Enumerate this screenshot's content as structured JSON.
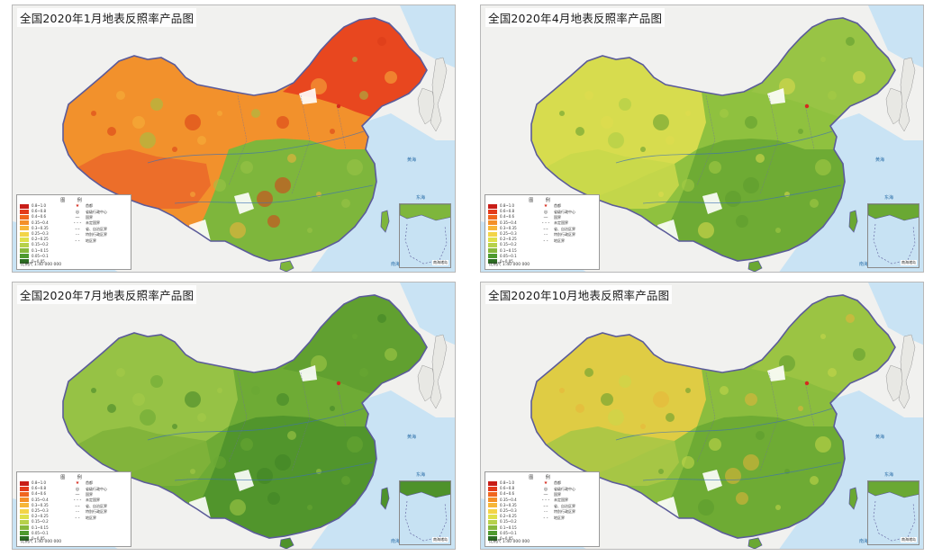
{
  "panels": [
    {
      "title": "全国2020年1月地表反照率产品图",
      "season": "winter"
    },
    {
      "title": "全国2020年4月地表反照率产品图",
      "season": "spring"
    },
    {
      "title": "全国2020年7月地表反照率产品图",
      "season": "summer"
    },
    {
      "title": "全国2020年10月地表反照率产品图",
      "season": "autumn"
    }
  ],
  "legend": {
    "title": "图 例",
    "classes": [
      {
        "label": "0.8~1.0",
        "color": "#c81d17"
      },
      {
        "label": "0.6~0.8",
        "color": "#e33b1c"
      },
      {
        "label": "0.4~0.6",
        "color": "#f0661e"
      },
      {
        "label": "0.35~0.4",
        "color": "#f49028"
      },
      {
        "label": "0.3~0.35",
        "color": "#f7b638"
      },
      {
        "label": "0.25~0.3",
        "color": "#f3d447"
      },
      {
        "label": "0.2~0.25",
        "color": "#dfe04b"
      },
      {
        "label": "0.15~0.2",
        "color": "#b6d14a"
      },
      {
        "label": "0.1~0.15",
        "color": "#86b83c"
      },
      {
        "label": "0.05~0.1",
        "color": "#4f9a2f"
      },
      {
        "label": "0~0.05",
        "color": "#2c6e22"
      }
    ],
    "symbols": [
      {
        "label": "首都",
        "icon": "capital-star"
      },
      {
        "label": "省级行政中心",
        "icon": "provincial-capital"
      },
      {
        "label": "国界",
        "icon": "national-boundary"
      },
      {
        "label": "未定国界",
        "icon": "undetermined-boundary"
      },
      {
        "label": "省、自治区界",
        "icon": "provincial-boundary"
      },
      {
        "label": "特别行政区界",
        "icon": "sar-boundary"
      },
      {
        "label": "地区界",
        "icon": "region-boundary"
      }
    ],
    "scale": "比例尺 1:40 000 000"
  },
  "inset_label": "南海诸岛",
  "sea_labels": [
    "黄海",
    "东海",
    "南海"
  ],
  "colors": {
    "sea": "#c9e3f4",
    "land_bg": "#f1f1ef",
    "china_outline": "#5b5b9a",
    "winter_north": "#e8471f",
    "winter_mid": "#f2912c",
    "winter_south": "#7eb63c",
    "spring_main": "#8fc13f",
    "spring_west": "#d7dc4e",
    "summer_main": "#6eab35",
    "summer_west": "#9ac447",
    "autumn_main": "#8bbd3e",
    "autumn_west": "#e4cc45"
  }
}
